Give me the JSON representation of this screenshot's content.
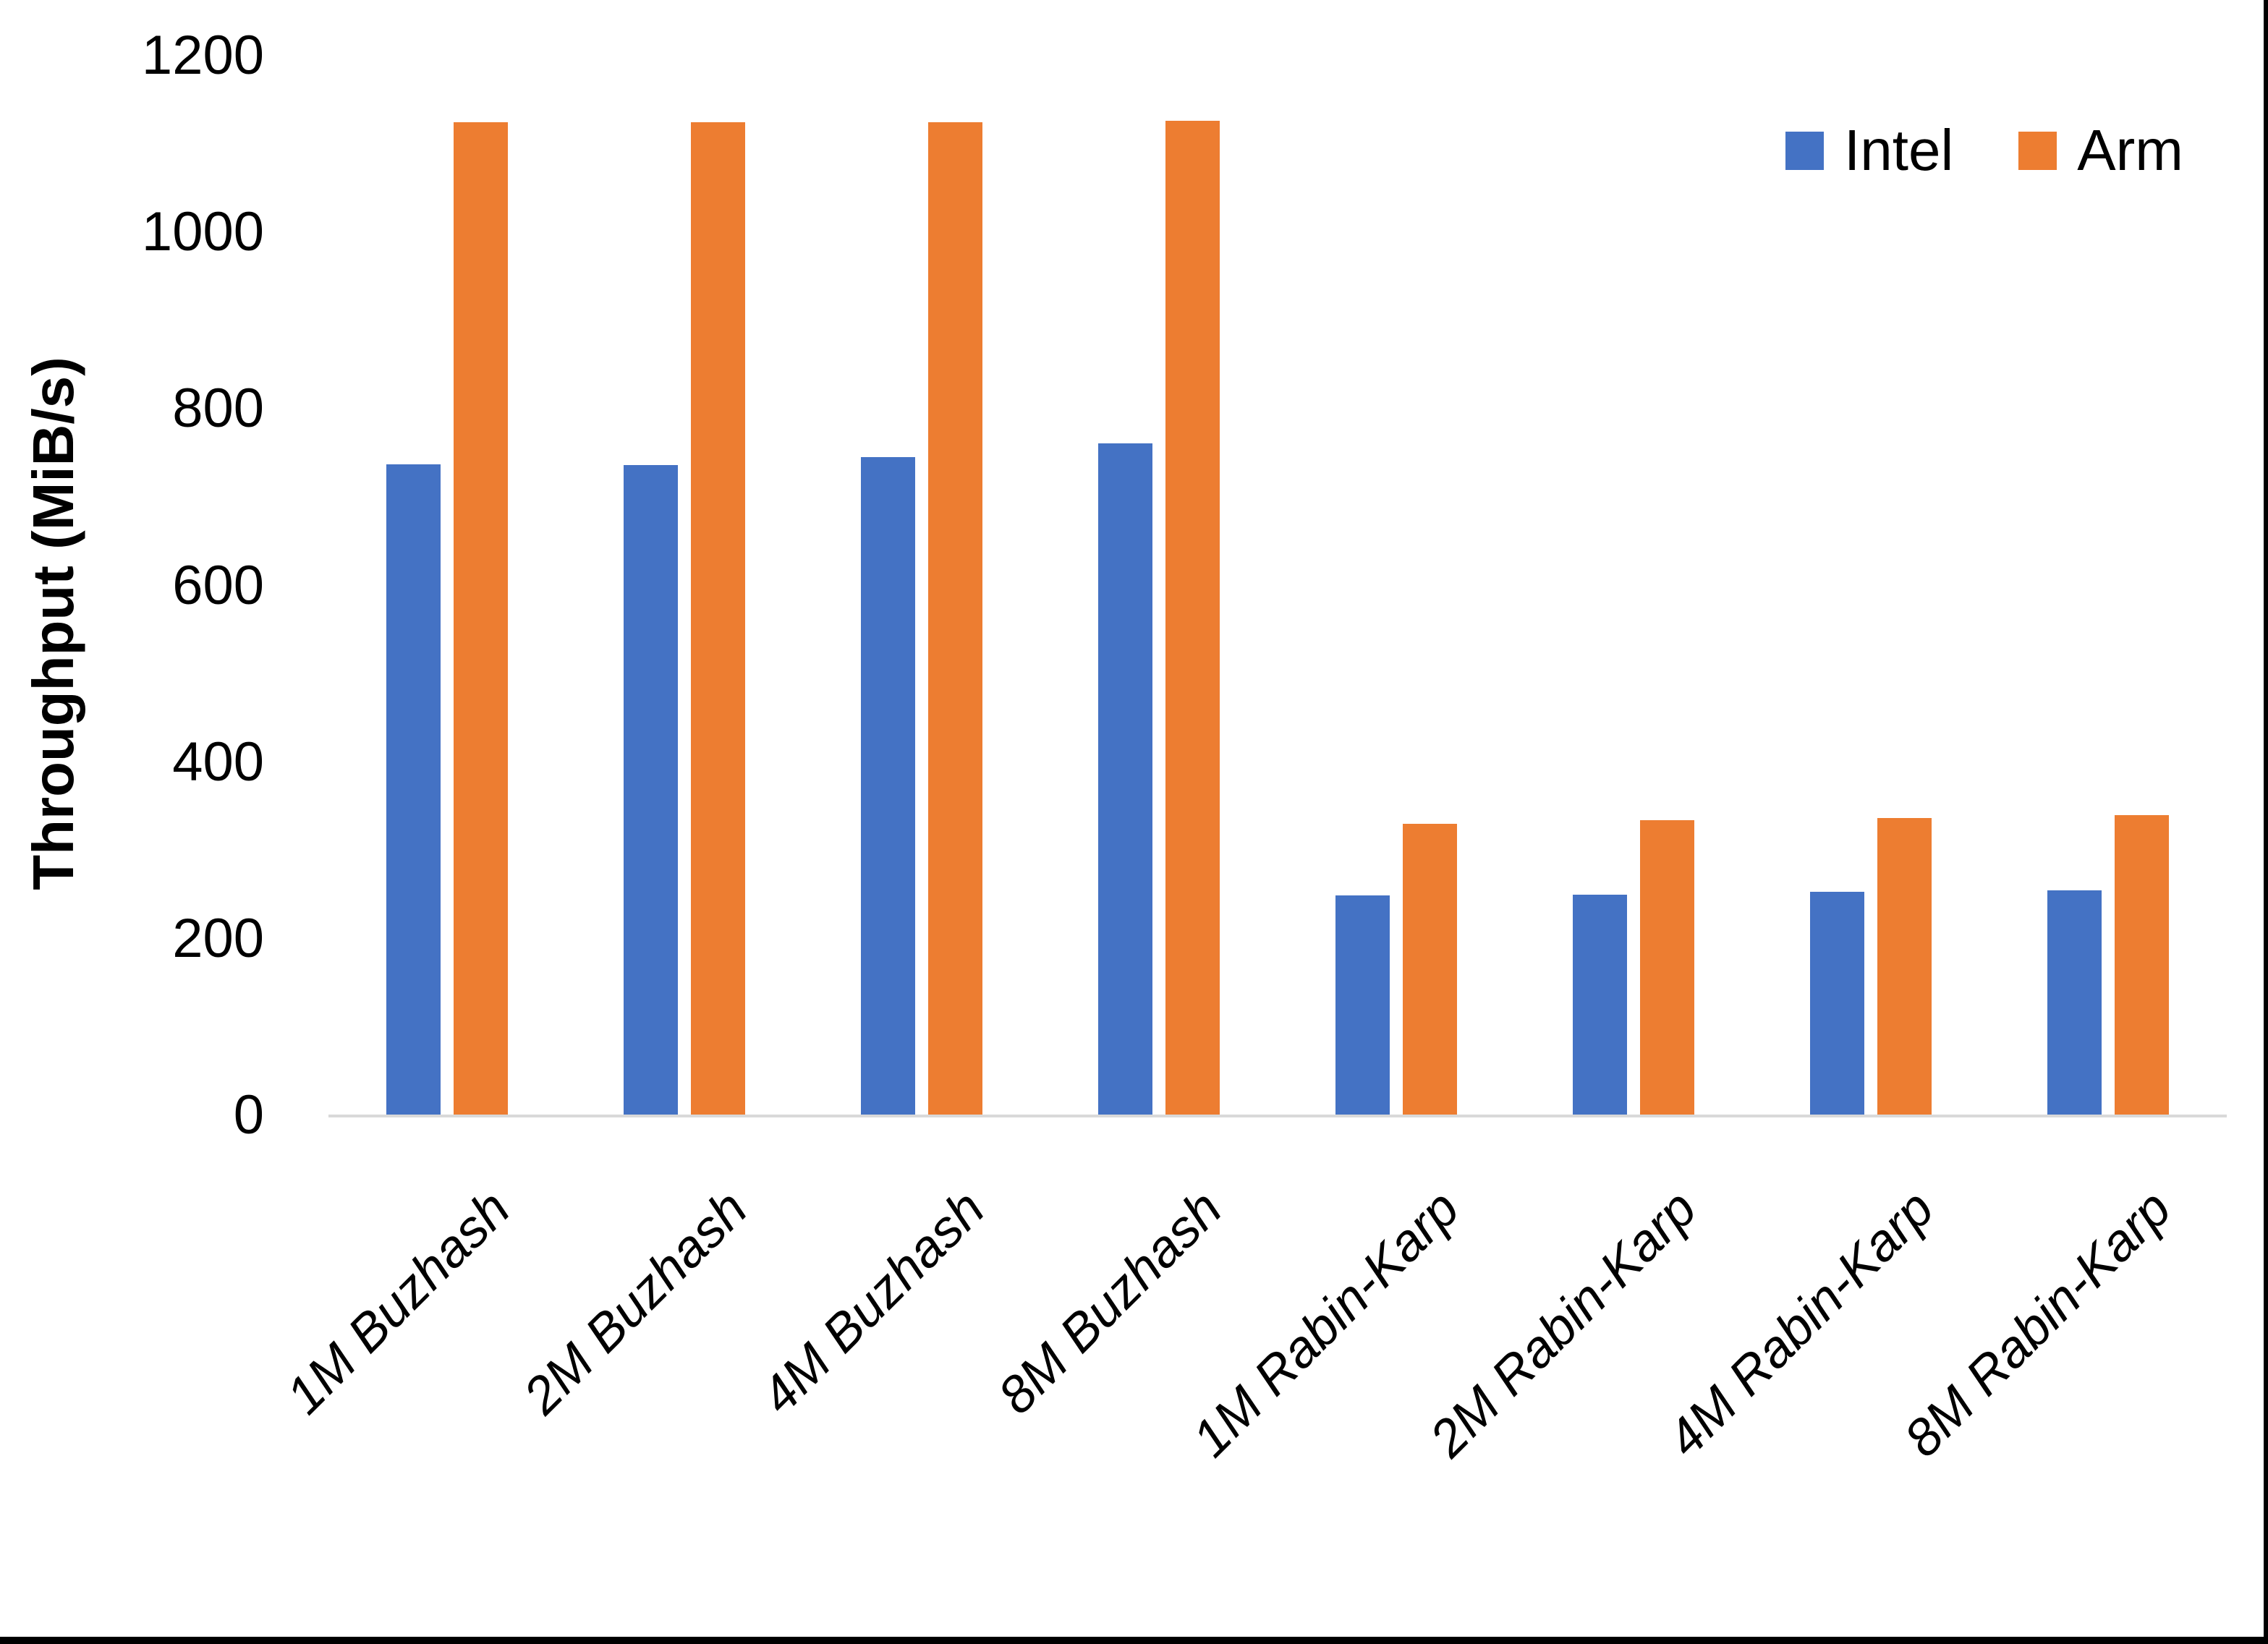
{
  "chart_data": {
    "type": "bar",
    "title": "",
    "xlabel": "",
    "ylabel": "Throughput (MiB/s)",
    "ylim": [
      0,
      1200
    ],
    "yticks": [
      0,
      200,
      400,
      600,
      800,
      1000,
      1200
    ],
    "grid": false,
    "legend_position": "top-right",
    "categories": [
      "1M Buzhash",
      "2M Buzhash",
      "4M Buzhash",
      "8M Buzhash",
      "1M Rabin-Karp",
      "2M Rabin-Karp",
      "4M Rabin-Karp",
      "8M Rabin-Karp"
    ],
    "series": [
      {
        "name": "Intel",
        "color": "#4472C4",
        "values": [
          737,
          736,
          745,
          761,
          249,
          250,
          253,
          255
        ]
      },
      {
        "name": "Arm",
        "color": "#ED7D31",
        "values": [
          1125,
          1125,
          1125,
          1126,
          330,
          334,
          337,
          340
        ]
      }
    ]
  },
  "axis": {
    "baseline_color": "#D9D9D9",
    "text_color": "#000000"
  },
  "frame": {
    "edge_color": "#000000"
  }
}
